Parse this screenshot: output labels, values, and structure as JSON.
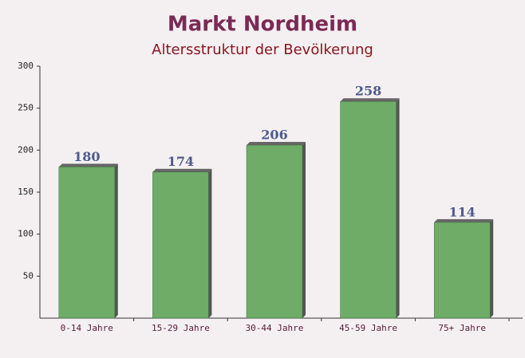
{
  "chart_data": {
    "type": "bar",
    "title": "Markt Nordheim",
    "subtitle": "Altersstruktur der Bevölkerung",
    "categories": [
      "0-14 Jahre",
      "15-29 Jahre",
      "30-44 Jahre",
      "45-59 Jahre",
      "75+ Jahre"
    ],
    "values": [
      180,
      174,
      206,
      258,
      114
    ],
    "color": "#66a860",
    "ylim": [
      0,
      300
    ],
    "yticks": [
      50,
      100,
      150,
      200,
      250,
      300
    ],
    "grid": false
  }
}
